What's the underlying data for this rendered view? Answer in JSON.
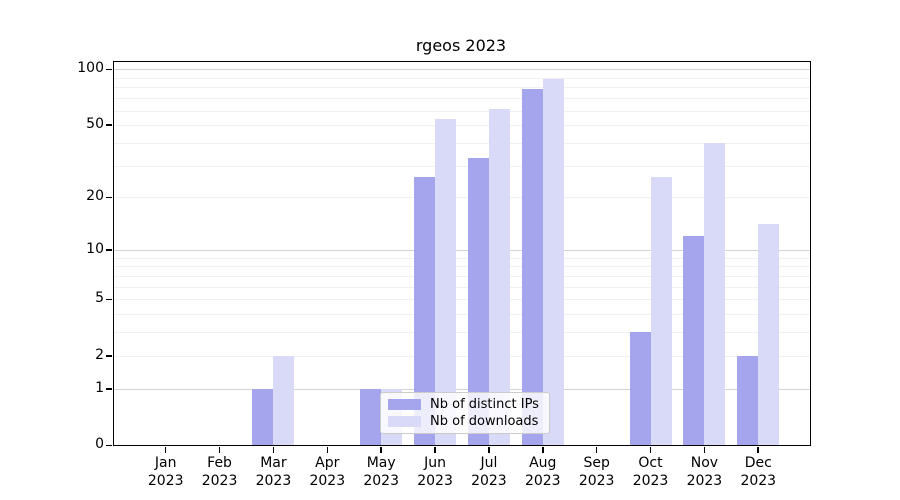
{
  "title": "rgeos 2023",
  "chart_data": {
    "type": "bar",
    "title": "rgeos 2023",
    "x_categories": [
      {
        "month": "Jan",
        "year": "2023"
      },
      {
        "month": "Feb",
        "year": "2023"
      },
      {
        "month": "Mar",
        "year": "2023"
      },
      {
        "month": "Apr",
        "year": "2023"
      },
      {
        "month": "May",
        "year": "2023"
      },
      {
        "month": "Jun",
        "year": "2023"
      },
      {
        "month": "Jul",
        "year": "2023"
      },
      {
        "month": "Aug",
        "year": "2023"
      },
      {
        "month": "Sep",
        "year": "2023"
      },
      {
        "month": "Oct",
        "year": "2023"
      },
      {
        "month": "Nov",
        "year": "2023"
      },
      {
        "month": "Dec",
        "year": "2023"
      }
    ],
    "series": [
      {
        "name": "Nb of distinct IPs",
        "color": "#a5a5ee",
        "values": [
          0,
          0,
          1,
          0,
          1,
          26,
          33,
          78,
          0,
          3,
          12,
          2
        ]
      },
      {
        "name": "Nb of downloads",
        "color": "#d9d9f8",
        "values": [
          0,
          0,
          2,
          0,
          1,
          54,
          61,
          89,
          0,
          26,
          40,
          14
        ]
      }
    ],
    "yscale": "log1p",
    "ylim": [
      0,
      110
    ],
    "yticks": [
      0,
      1,
      2,
      5,
      10,
      20,
      50,
      100
    ],
    "grid": {
      "orientation": "horizontal",
      "major_values": [
        1,
        10,
        100
      ],
      "minor_values": [
        2,
        3,
        4,
        5,
        6,
        7,
        8,
        9,
        20,
        30,
        40,
        50,
        60,
        70,
        80,
        90
      ]
    },
    "legend_position": "inside-bottom-center"
  },
  "legend": {
    "items": [
      {
        "label": "Nb of distinct IPs",
        "color": "#a5a5ee"
      },
      {
        "label": "Nb of downloads",
        "color": "#d9d9f8"
      }
    ]
  },
  "colors": {
    "axis_frame": "#000000",
    "grid_major": "#d2d2d4",
    "grid_minor": "#f0f0f1",
    "text": "#000000",
    "legend_border": "#cccccc"
  }
}
